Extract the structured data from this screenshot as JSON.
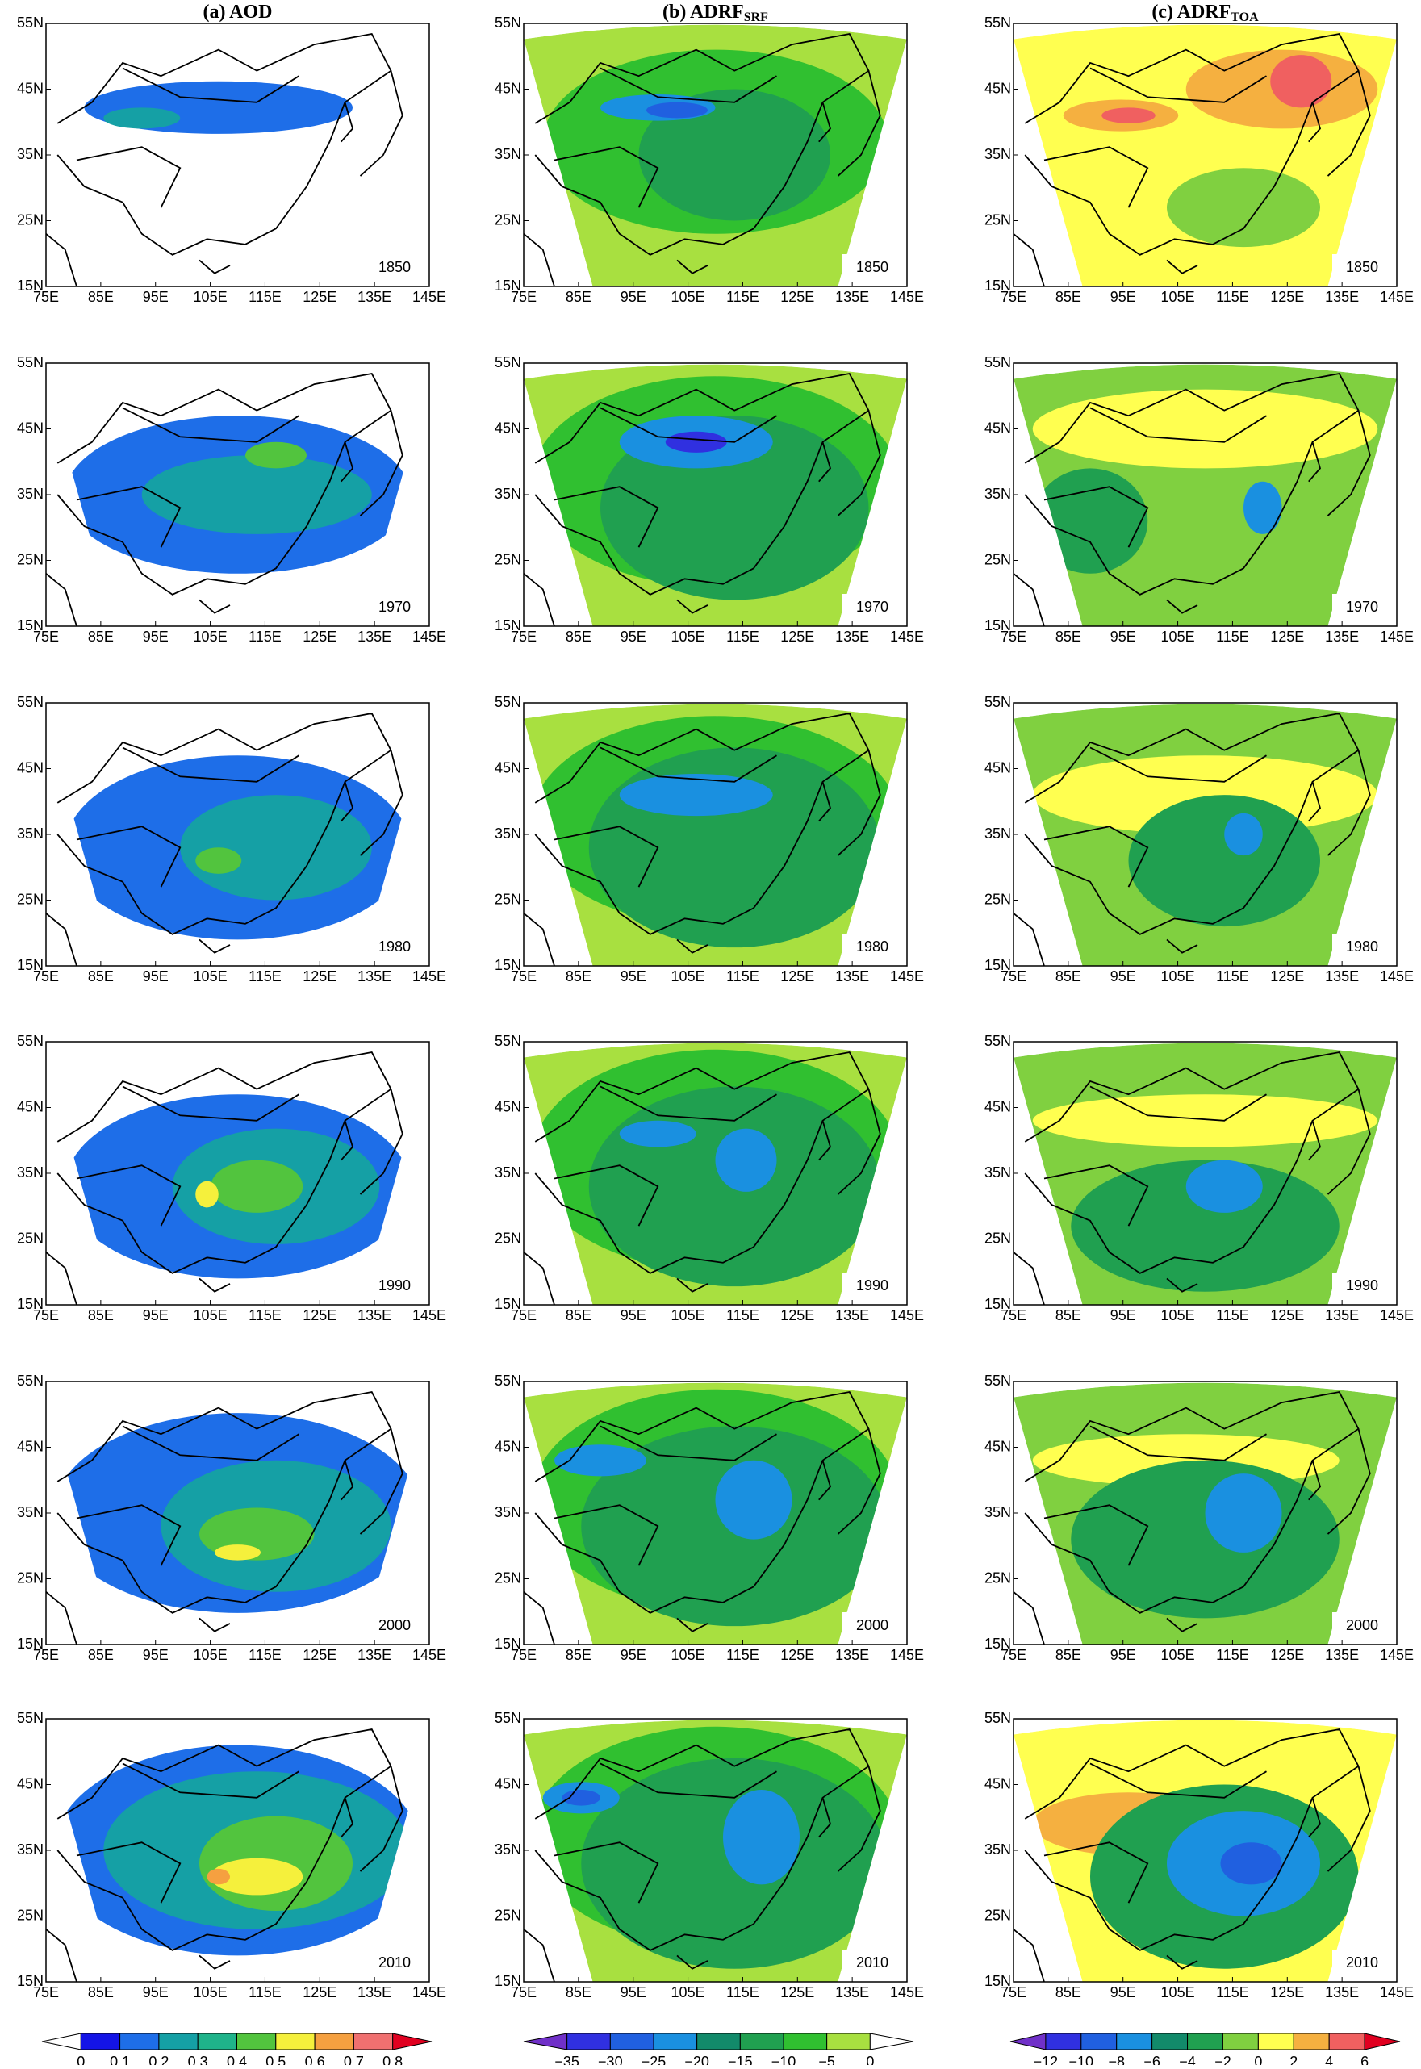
{
  "columns": [
    {
      "title": "(a) AOD",
      "subscript": null
    },
    {
      "title": "(b) ADRF",
      "subscript": "SRF"
    },
    {
      "title": "(c) ADRF",
      "subscript": "TOA"
    }
  ],
  "years": [
    "1850",
    "1970",
    "1980",
    "1990",
    "2000",
    "2010"
  ],
  "lat_ticks": [
    "15N",
    "25N",
    "35N",
    "45N",
    "55N"
  ],
  "lon_ticks": [
    "75E",
    "85E",
    "95E",
    "105E",
    "115E",
    "125E",
    "135E",
    "145E"
  ],
  "colorbars": [
    {
      "labels": [
        "0",
        "0.1",
        "0.2",
        "0.3",
        "0.4",
        "0.5",
        "0.6",
        "0.7",
        "0.8"
      ],
      "colors": [
        "#ffffff",
        "#1414e6",
        "#1e6ee8",
        "#15a0a5",
        "#1fb38a",
        "#52c43e",
        "#f5f03c",
        "#f5a040",
        "#f07070",
        "#e00020"
      ]
    },
    {
      "labels": [
        "−35",
        "−30",
        "−25",
        "−20",
        "−15",
        "−10",
        "−5",
        "0"
      ],
      "colors": [
        "#7030c8",
        "#3030e0",
        "#2060e0",
        "#1a90e0",
        "#128a6a",
        "#20a050",
        "#30c030",
        "#a8e040",
        "#ffffff"
      ]
    },
    {
      "labels": [
        "−12",
        "−10",
        "−8",
        "−6",
        "−4",
        "−2",
        "0",
        "2",
        "4",
        "6"
      ],
      "colors": [
        "#7030c8",
        "#3030e0",
        "#2060e0",
        "#1a90e0",
        "#128a6a",
        "#20a050",
        "#80d040",
        "#ffff50",
        "#f5b040",
        "#f06060",
        "#e00020"
      ]
    }
  ]
}
